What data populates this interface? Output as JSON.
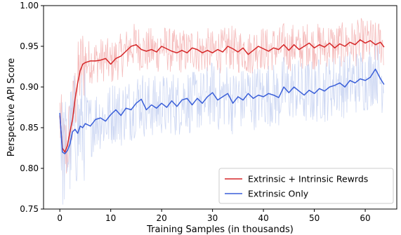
{
  "chart_data": {
    "type": "line",
    "title": "",
    "xlabel": "Training Samples (in thousands)",
    "ylabel": "Perspective API Score",
    "xlim": [
      -3.2,
      66.2
    ],
    "ylim": [
      0.75,
      1.0
    ],
    "xticks": [
      0,
      10,
      20,
      30,
      40,
      50,
      60
    ],
    "yticks": [
      0.75,
      0.8,
      0.85,
      0.9,
      0.95,
      1.0
    ],
    "ytick_labels": [
      "0.75",
      "0.80",
      "0.85",
      "0.90",
      "0.95",
      "1.00"
    ],
    "grid": false,
    "legend_position": "lower-right",
    "series": [
      {
        "name": "Extrinsic + Intrinsic Rewrds",
        "color": "#d62728",
        "raw_color": "#f4b6b6",
        "x": [
          0,
          0.5,
          1,
          1.5,
          2,
          2.5,
          3,
          3.5,
          4,
          4.5,
          5,
          6,
          7,
          8,
          9,
          10,
          11,
          12,
          13,
          14,
          15,
          16,
          17,
          18,
          19,
          20,
          21,
          22,
          23,
          24,
          25,
          26,
          27,
          28,
          29,
          30,
          31,
          32,
          33,
          34,
          35,
          36,
          37,
          38,
          39,
          40,
          41,
          42,
          43,
          44,
          45,
          46,
          47,
          48,
          49,
          50,
          51,
          52,
          53,
          54,
          55,
          56,
          57,
          58,
          59,
          60,
          61,
          62,
          63,
          63.7
        ],
        "y": [
          0.865,
          0.825,
          0.82,
          0.828,
          0.845,
          0.86,
          0.885,
          0.905,
          0.92,
          0.928,
          0.93,
          0.932,
          0.932,
          0.933,
          0.935,
          0.928,
          0.935,
          0.938,
          0.944,
          0.95,
          0.952,
          0.946,
          0.944,
          0.946,
          0.943,
          0.95,
          0.947,
          0.944,
          0.942,
          0.945,
          0.942,
          0.948,
          0.946,
          0.942,
          0.945,
          0.942,
          0.946,
          0.943,
          0.95,
          0.947,
          0.943,
          0.948,
          0.94,
          0.945,
          0.95,
          0.947,
          0.944,
          0.948,
          0.946,
          0.952,
          0.945,
          0.952,
          0.946,
          0.95,
          0.954,
          0.948,
          0.952,
          0.949,
          0.954,
          0.948,
          0.953,
          0.95,
          0.955,
          0.952,
          0.958,
          0.954,
          0.957,
          0.952,
          0.955,
          0.949
        ]
      },
      {
        "name": "Extrinsic Only",
        "color": "#3a5fd9",
        "raw_color": "#c9d4f2",
        "x": [
          0,
          0.5,
          1,
          1.5,
          2,
          2.5,
          3,
          3.5,
          4,
          4.5,
          5,
          6,
          7,
          8,
          9,
          10,
          11,
          12,
          13,
          14,
          15,
          16,
          17,
          18,
          19,
          20,
          21,
          22,
          23,
          24,
          25,
          26,
          27,
          28,
          29,
          30,
          31,
          32,
          33,
          34,
          35,
          36,
          37,
          38,
          39,
          40,
          41,
          42,
          43,
          44,
          45,
          46,
          47,
          48,
          49,
          50,
          51,
          52,
          53,
          54,
          55,
          56,
          57,
          58,
          59,
          60,
          61,
          62,
          63,
          63.7
        ],
        "y": [
          0.868,
          0.82,
          0.818,
          0.822,
          0.83,
          0.845,
          0.848,
          0.843,
          0.852,
          0.85,
          0.855,
          0.852,
          0.86,
          0.862,
          0.858,
          0.866,
          0.872,
          0.865,
          0.874,
          0.872,
          0.88,
          0.885,
          0.872,
          0.878,
          0.874,
          0.88,
          0.875,
          0.883,
          0.876,
          0.884,
          0.886,
          0.878,
          0.886,
          0.88,
          0.888,
          0.893,
          0.884,
          0.888,
          0.892,
          0.88,
          0.888,
          0.884,
          0.892,
          0.886,
          0.89,
          0.888,
          0.892,
          0.89,
          0.887,
          0.9,
          0.893,
          0.9,
          0.895,
          0.89,
          0.896,
          0.892,
          0.898,
          0.895,
          0.9,
          0.902,
          0.905,
          0.9,
          0.908,
          0.905,
          0.91,
          0.908,
          0.912,
          0.922,
          0.91,
          0.903
        ]
      }
    ]
  }
}
